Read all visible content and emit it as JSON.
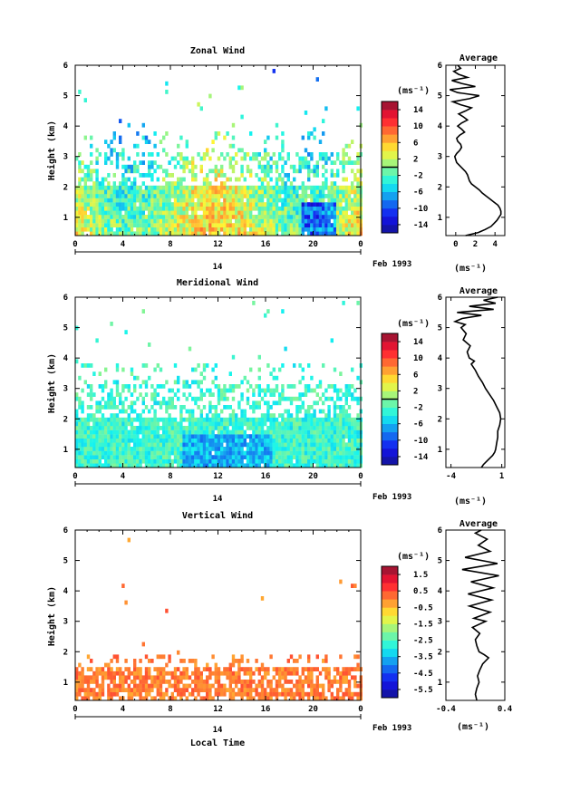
{
  "chart_data": [
    {
      "type": "heatmap",
      "title": "Zonal Wind",
      "ylabel": "Height (km)",
      "xlabel": "",
      "x_ticks": [
        "0",
        "4",
        "8",
        "12",
        "16",
        "20",
        "0"
      ],
      "y_ticks": [
        "1",
        "2",
        "3",
        "4",
        "5",
        "6"
      ],
      "xlim": [
        0,
        24
      ],
      "ylim": [
        0.4,
        6
      ],
      "date_day": "14",
      "date_label": "Feb 1993",
      "colorbar": {
        "unit": "(ms⁻¹)",
        "ticks": [
          "14",
          "10",
          "6",
          "2",
          "-2",
          "-6",
          "-10",
          "-14"
        ],
        "range": [
          -16,
          16
        ],
        "zero_line": 0
      },
      "profile": {
        "title": "Average",
        "xlabel": "(ms⁻¹)",
        "x_ticks": [
          "0",
          "2",
          "4"
        ],
        "xlim": [
          -1,
          5
        ],
        "y_ticks": [
          "1",
          "2",
          "3",
          "4",
          "5",
          "6"
        ],
        "ylim": [
          0.4,
          6
        ],
        "points": [
          [
            1.0,
            0.4
          ],
          [
            2.3,
            0.5
          ],
          [
            3.0,
            0.6
          ],
          [
            3.6,
            0.7
          ],
          [
            3.9,
            0.8
          ],
          [
            4.2,
            0.9
          ],
          [
            4.4,
            1.0
          ],
          [
            4.6,
            1.1
          ],
          [
            4.6,
            1.2
          ],
          [
            4.5,
            1.3
          ],
          [
            4.3,
            1.4
          ],
          [
            3.9,
            1.5
          ],
          [
            3.5,
            1.6
          ],
          [
            3.1,
            1.7
          ],
          [
            2.7,
            1.8
          ],
          [
            2.4,
            1.9
          ],
          [
            2.0,
            2.0
          ],
          [
            1.6,
            2.1
          ],
          [
            1.4,
            2.2
          ],
          [
            1.3,
            2.3
          ],
          [
            1.2,
            2.4
          ],
          [
            1.0,
            2.5
          ],
          [
            0.7,
            2.6
          ],
          [
            0.4,
            2.7
          ],
          [
            0.1,
            2.8
          ],
          [
            0.0,
            2.9
          ],
          [
            -0.1,
            3.0
          ],
          [
            0.1,
            3.1
          ],
          [
            0.4,
            3.2
          ],
          [
            0.6,
            3.3
          ],
          [
            0.5,
            3.4
          ],
          [
            0.2,
            3.5
          ],
          [
            0.1,
            3.6
          ],
          [
            0.4,
            3.7
          ],
          [
            0.9,
            3.8
          ],
          [
            0.6,
            3.9
          ],
          [
            0.2,
            4.0
          ],
          [
            0.6,
            4.1
          ],
          [
            1.2,
            4.2
          ],
          [
            0.8,
            4.3
          ],
          [
            0.3,
            4.4
          ],
          [
            1.0,
            4.5
          ],
          [
            1.6,
            4.6
          ],
          [
            0.5,
            4.7
          ],
          [
            -0.3,
            4.8
          ],
          [
            1.4,
            4.9
          ],
          [
            2.4,
            5.0
          ],
          [
            0.2,
            5.1
          ],
          [
            -0.6,
            5.2
          ],
          [
            2.0,
            5.3
          ],
          [
            0.6,
            5.4
          ],
          [
            -0.4,
            5.5
          ],
          [
            1.2,
            5.6
          ],
          [
            0.3,
            5.7
          ],
          [
            -0.2,
            5.8
          ],
          [
            0.5,
            5.9
          ],
          [
            0.2,
            6.0
          ]
        ]
      }
    },
    {
      "type": "heatmap",
      "title": "Meridional Wind",
      "ylabel": "Height (km)",
      "xlabel": "",
      "x_ticks": [
        "0",
        "4",
        "8",
        "12",
        "16",
        "20",
        "0"
      ],
      "y_ticks": [
        "1",
        "2",
        "3",
        "4",
        "5",
        "6"
      ],
      "xlim": [
        0,
        24
      ],
      "ylim": [
        0.4,
        6
      ],
      "date_day": "14",
      "date_label": "Feb 1993",
      "colorbar": {
        "unit": "(ms⁻¹)",
        "ticks": [
          "14",
          "10",
          "6",
          "2",
          "-2",
          "-6",
          "-10",
          "-14"
        ],
        "range": [
          -16,
          16
        ],
        "zero_line": 0
      },
      "profile": {
        "title": "Average",
        "xlabel": "(ms⁻¹)",
        "x_ticks": [
          "-4",
          "1"
        ],
        "xlim": [
          -4.5,
          1.3
        ],
        "y_ticks": [
          "1",
          "2",
          "3",
          "4",
          "5",
          "6"
        ],
        "ylim": [
          0.4,
          6
        ],
        "points": [
          [
            -1.0,
            0.4
          ],
          [
            -0.8,
            0.5
          ],
          [
            -0.5,
            0.6
          ],
          [
            -0.2,
            0.7
          ],
          [
            0.1,
            0.8
          ],
          [
            0.3,
            0.9
          ],
          [
            0.4,
            1.0
          ],
          [
            0.5,
            1.2
          ],
          [
            0.6,
            1.4
          ],
          [
            0.6,
            1.6
          ],
          [
            0.8,
            1.8
          ],
          [
            0.9,
            2.0
          ],
          [
            0.8,
            2.2
          ],
          [
            0.5,
            2.4
          ],
          [
            0.2,
            2.6
          ],
          [
            -0.2,
            2.8
          ],
          [
            -0.6,
            3.0
          ],
          [
            -0.9,
            3.2
          ],
          [
            -1.3,
            3.4
          ],
          [
            -1.6,
            3.6
          ],
          [
            -2.0,
            3.8
          ],
          [
            -1.7,
            3.9
          ],
          [
            -2.2,
            4.0
          ],
          [
            -2.4,
            4.2
          ],
          [
            -2.1,
            4.4
          ],
          [
            -2.8,
            4.6
          ],
          [
            -2.5,
            4.8
          ],
          [
            -3.0,
            5.0
          ],
          [
            -2.6,
            5.1
          ],
          [
            -3.6,
            5.2
          ],
          [
            -2.9,
            5.3
          ],
          [
            -1.0,
            5.4
          ],
          [
            -3.4,
            5.5
          ],
          [
            0.2,
            5.6
          ],
          [
            -2.2,
            5.7
          ],
          [
            0.4,
            5.8
          ],
          [
            -0.8,
            5.9
          ],
          [
            0.6,
            6.0
          ]
        ]
      }
    },
    {
      "type": "heatmap",
      "title": "Vertical Wind",
      "ylabel": "Height (km)",
      "xlabel": "Local Time",
      "x_ticks": [
        "0",
        "4",
        "8",
        "12",
        "16",
        "20",
        "0"
      ],
      "y_ticks": [
        "1",
        "2",
        "3",
        "4",
        "5",
        "6"
      ],
      "xlim": [
        0,
        24
      ],
      "ylim": [
        0.4,
        6
      ],
      "date_day": "14",
      "date_label": "Feb 1993",
      "colorbar": {
        "unit": "(ms⁻¹)",
        "ticks": [
          "1.5",
          "0.5",
          "-0.5",
          "-1.5",
          "-2.5",
          "-3.5",
          "-4.5",
          "-5.5"
        ],
        "range": [
          -6,
          2
        ]
      },
      "profile": {
        "title": "Average",
        "xlabel": "(ms⁻¹)",
        "x_ticks": [
          "-0.4",
          "0.4"
        ],
        "xlim": [
          -0.4,
          0.4
        ],
        "y_ticks": [
          "1",
          "2",
          "3",
          "4",
          "5",
          "6"
        ],
        "ylim": [
          0.4,
          6
        ],
        "points": [
          [
            0.02,
            0.4
          ],
          [
            0.0,
            0.6
          ],
          [
            0.02,
            0.8
          ],
          [
            0.05,
            1.0
          ],
          [
            0.03,
            1.2
          ],
          [
            0.06,
            1.4
          ],
          [
            0.1,
            1.6
          ],
          [
            0.18,
            1.8
          ],
          [
            0.12,
            1.9
          ],
          [
            0.05,
            2.0
          ],
          [
            0.02,
            2.2
          ],
          [
            0.0,
            2.4
          ],
          [
            0.06,
            2.6
          ],
          [
            -0.04,
            2.8
          ],
          [
            0.14,
            3.0
          ],
          [
            -0.02,
            3.1
          ],
          [
            0.2,
            3.3
          ],
          [
            -0.08,
            3.5
          ],
          [
            0.22,
            3.7
          ],
          [
            -0.1,
            3.9
          ],
          [
            0.24,
            4.1
          ],
          [
            -0.06,
            4.3
          ],
          [
            0.32,
            4.5
          ],
          [
            -0.18,
            4.7
          ],
          [
            0.3,
            4.9
          ],
          [
            -0.14,
            5.1
          ],
          [
            0.2,
            5.3
          ],
          [
            0.04,
            5.5
          ],
          [
            0.16,
            5.7
          ],
          [
            0.0,
            5.9
          ],
          [
            0.08,
            6.0
          ]
        ]
      }
    }
  ]
}
